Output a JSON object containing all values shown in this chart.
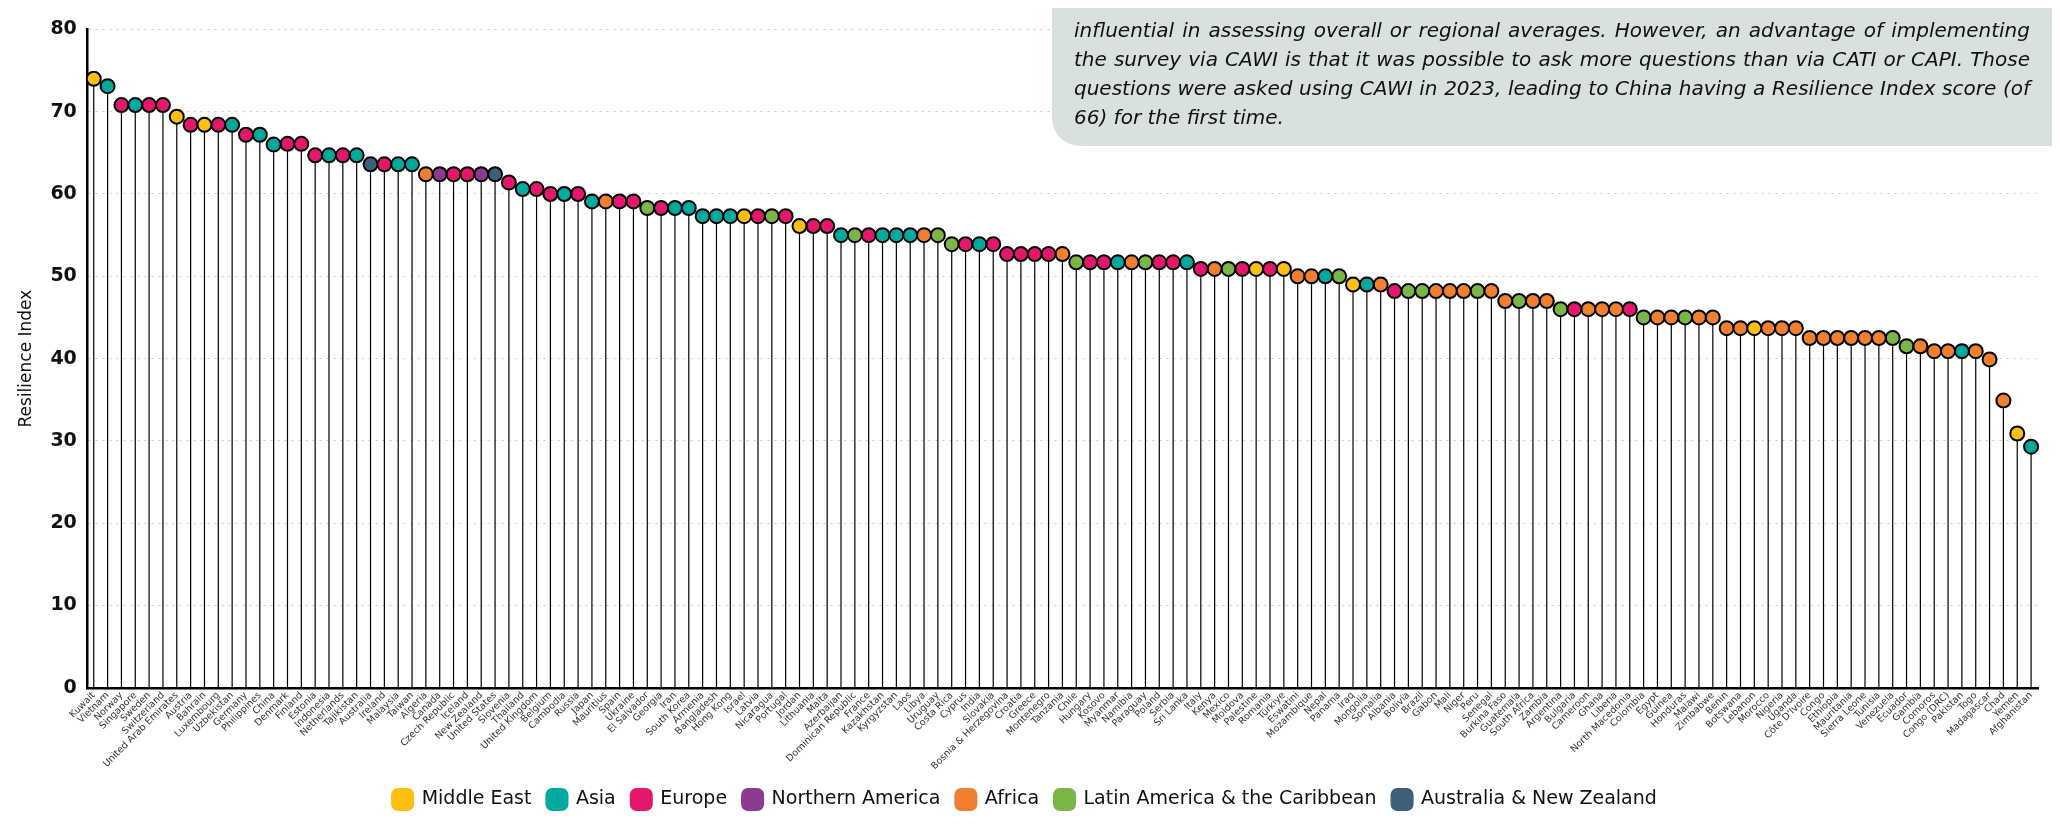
{
  "chart_data": {
    "type": "lollipop",
    "ylabel": "Resilience Index",
    "ylim": [
      0,
      80
    ],
    "yticks": [
      0,
      10,
      20,
      30,
      40,
      50,
      60,
      70,
      80
    ],
    "grid": "y",
    "legend": "bottom",
    "marker": "circle",
    "annotations": [
      "influential in assessing overall or regional averages. However, an advantage of implementing the survey via CAWI is that it was possible to ask more questions than via CATI or CAPI. Those questions were asked using CAWI in 2023, leading to China having a Resilience Index score (of 66) for the first time."
    ],
    "categories": [
      "Kuwait",
      "Vietnam",
      "Norway",
      "Singapore",
      "Sweden",
      "Switzerland",
      "United Arab Emirates",
      "Austria",
      "Bahrain",
      "Luxembourg",
      "Uzbekistan",
      "Germany",
      "Philippines",
      "China",
      "Denmark",
      "Finland",
      "Estonia",
      "Indonesia",
      "Netherlands",
      "Tajikistan",
      "Australia",
      "Ireland",
      "Malaysia",
      "Taiwan",
      "Algeria",
      "Canada",
      "Czech Republic",
      "Iceland",
      "New Zealand",
      "United States",
      "Slovenia",
      "Thailand",
      "United Kingdom",
      "Belgium",
      "Cambodia",
      "Russia",
      "Japan",
      "Mauritius",
      "Spain",
      "Ukraine",
      "El Salvador",
      "Georgia",
      "Iran",
      "South Korea",
      "Armenia",
      "Bangladesh",
      "Hong Kong",
      "Israel",
      "Latvia",
      "Nicaragua",
      "Portugal",
      "Jordan",
      "Lithuania",
      "Malta",
      "Azerbaijan",
      "Dominican Republic",
      "France",
      "Kazakhstan",
      "Kyrgyzstan",
      "Laos",
      "Libya",
      "Uruguay",
      "Costa Rica",
      "Cyprus",
      "India",
      "Slovakia",
      "Bosnia & Herzegovina",
      "Croatia",
      "Greece",
      "Montenegro",
      "Tanzania",
      "Chile",
      "Hungary",
      "Kosovo",
      "Myanmar",
      "Namibia",
      "Paraguay",
      "Poland",
      "Serbia",
      "Sri Lanka",
      "Italy",
      "Kenya",
      "Mexico",
      "Moldova",
      "Palestine",
      "Romania",
      "Türkiye",
      "Eswatini",
      "Mozambique",
      "Nepal",
      "Panama",
      "Iraq",
      "Mongolia",
      "Somalia",
      "Albania",
      "Bolivia",
      "Brazil",
      "Gabon",
      "Mali",
      "Niger",
      "Peru",
      "Senegal",
      "Burkina Faso",
      "Guatemala",
      "South Africa",
      "Zambia",
      "Argentina",
      "Bulgaria",
      "Cameroon",
      "Ghana",
      "Liberia",
      "North Macedonia",
      "Colombia",
      "Egypt",
      "Guinea",
      "Honduras",
      "Malawi",
      "Zimbabwe",
      "Benin",
      "Botswana",
      "Lebanon",
      "Morocco",
      "Nigeria",
      "Uganda",
      "Côte D'Ivoire",
      "Congo",
      "Ethiopia",
      "Mauritania",
      "Sierra Leone",
      "Tunisia",
      "Venezuela",
      "Ecuador",
      "Gambia",
      "Comoros",
      "Congo (DRC)",
      "Pakistan",
      "Togo",
      "Madagascar",
      "Chad",
      "Yemen",
      "Afghanistan"
    ],
    "series": [
      {
        "name": "Middle East",
        "color": "#fdc010",
        "values": [
          74.0,
          null,
          null,
          null,
          null,
          null,
          69.4,
          null,
          68.4,
          null,
          null,
          null,
          null,
          null,
          null,
          null,
          null,
          null,
          null,
          null,
          null,
          null,
          null,
          null,
          null,
          null,
          null,
          null,
          null,
          null,
          null,
          null,
          null,
          null,
          null,
          null,
          null,
          null,
          null,
          null,
          null,
          null,
          null,
          null,
          null,
          null,
          null,
          57.3,
          null,
          null,
          null,
          56.1,
          null,
          null,
          null,
          null,
          null,
          null,
          null,
          null,
          null,
          null,
          null,
          null,
          null,
          null,
          null,
          null,
          null,
          null,
          null,
          null,
          null,
          null,
          null,
          null,
          null,
          null,
          null,
          null,
          null,
          null,
          null,
          null,
          50.9,
          null,
          50.9,
          null,
          null,
          null,
          null,
          49.0,
          null,
          null,
          null,
          null,
          null,
          null,
          null,
          null,
          null,
          null,
          null,
          null,
          null,
          null,
          null,
          null,
          null,
          null,
          null,
          null,
          null,
          null,
          null,
          null,
          null,
          null,
          null,
          null,
          43.7,
          null,
          null,
          null,
          null,
          null,
          null,
          null,
          null,
          null,
          null,
          null,
          null,
          null,
          null,
          null,
          null,
          null,
          null,
          30.9,
          null
        ]
      },
      {
        "name": "Asia",
        "color": "#00a99d",
        "values": [
          null,
          73.1,
          null,
          70.8,
          null,
          null,
          null,
          null,
          null,
          null,
          68.4,
          null,
          67.2,
          66,
          null,
          null,
          null,
          64.7,
          null,
          64.7,
          null,
          null,
          63.6,
          63.6,
          null,
          null,
          null,
          null,
          null,
          null,
          null,
          60.6,
          null,
          null,
          60.0,
          null,
          59.1,
          null,
          null,
          null,
          null,
          null,
          58.3,
          58.3,
          57.3,
          57.3,
          57.3,
          null,
          null,
          null,
          null,
          null,
          null,
          null,
          55.0,
          null,
          null,
          55.0,
          55.0,
          55.0,
          null,
          null,
          null,
          null,
          53.9,
          null,
          null,
          null,
          null,
          null,
          null,
          null,
          null,
          null,
          51.7,
          null,
          null,
          null,
          null,
          51.7,
          null,
          null,
          null,
          null,
          null,
          null,
          null,
          null,
          null,
          50.0,
          null,
          null,
          49.0,
          null,
          null,
          null,
          null,
          null,
          null,
          null,
          null,
          null,
          null,
          null,
          null,
          null,
          null,
          null,
          null,
          null,
          null,
          null,
          null,
          null,
          null,
          null,
          null,
          null,
          null,
          null,
          null,
          null,
          null,
          null,
          null,
          null,
          null,
          null,
          null,
          null,
          null,
          null,
          null,
          null,
          null,
          40.9,
          null,
          null,
          null,
          null,
          29.3
        ]
      },
      {
        "name": "Europe",
        "color": "#e5176c",
        "values": [
          null,
          null,
          70.8,
          null,
          70.8,
          70.8,
          null,
          68.4,
          null,
          68.4,
          null,
          67.2,
          null,
          null,
          66.1,
          66.1,
          64.7,
          null,
          64.7,
          null,
          null,
          63.6,
          null,
          null,
          null,
          null,
          62.4,
          62.4,
          null,
          null,
          61.4,
          null,
          60.6,
          60.0,
          null,
          60.0,
          null,
          null,
          59.1,
          59.1,
          null,
          58.3,
          null,
          null,
          null,
          null,
          null,
          null,
          57.3,
          null,
          57.3,
          null,
          56.1,
          56.1,
          null,
          null,
          55.0,
          null,
          null,
          null,
          null,
          null,
          null,
          53.9,
          null,
          53.9,
          52.7,
          52.7,
          52.7,
          52.7,
          null,
          null,
          51.7,
          51.7,
          null,
          null,
          null,
          51.7,
          51.7,
          null,
          50.9,
          null,
          null,
          50.9,
          null,
          50.9,
          null,
          null,
          null,
          null,
          null,
          null,
          null,
          null,
          48.2,
          null,
          null,
          null,
          null,
          null,
          null,
          null,
          null,
          null,
          null,
          null,
          null,
          46.0,
          null,
          null,
          null,
          46.0,
          null,
          null,
          null,
          null,
          null,
          null,
          null,
          null,
          null,
          null,
          null,
          null,
          null,
          null,
          null,
          null,
          null,
          null,
          null,
          null,
          null,
          null,
          null,
          null,
          null,
          null,
          null,
          null,
          null
        ]
      },
      {
        "name": "Northern America",
        "color": "#8e3a91",
        "values": [
          null,
          null,
          null,
          null,
          null,
          null,
          null,
          null,
          null,
          null,
          null,
          null,
          null,
          null,
          null,
          null,
          null,
          null,
          null,
          null,
          null,
          null,
          null,
          null,
          null,
          62.4,
          null,
          null,
          62.4,
          null,
          null,
          null,
          null,
          null,
          null,
          null,
          null,
          null,
          null,
          null,
          null,
          null,
          null,
          null,
          null,
          null,
          null,
          null,
          null,
          null,
          null,
          null,
          null,
          null,
          null,
          null,
          null,
          null,
          null,
          null,
          null,
          null,
          null,
          null,
          null,
          null,
          null,
          null,
          null,
          null,
          null,
          null,
          null,
          null,
          null,
          null,
          null,
          null,
          null,
          null,
          null,
          null,
          null,
          null,
          null,
          null,
          null,
          null,
          null,
          null,
          null,
          null,
          null,
          null,
          null,
          null,
          null,
          null,
          null,
          null,
          null,
          null,
          null,
          null,
          null,
          null,
          null,
          null,
          null,
          null,
          null,
          null,
          null,
          null,
          null,
          null,
          null,
          null,
          null,
          null,
          null,
          null,
          null,
          null,
          null,
          null,
          null,
          null,
          null,
          null,
          null,
          null,
          null,
          null,
          null,
          null,
          null,
          null,
          null,
          null,
          null
        ]
      },
      {
        "name": "Africa",
        "color": "#f07f2f",
        "values": [
          null,
          null,
          null,
          null,
          null,
          null,
          null,
          null,
          null,
          null,
          null,
          null,
          null,
          null,
          null,
          null,
          null,
          null,
          null,
          null,
          null,
          null,
          null,
          null,
          62.4,
          null,
          null,
          null,
          null,
          null,
          null,
          null,
          null,
          null,
          null,
          null,
          null,
          59.1,
          null,
          null,
          null,
          null,
          null,
          null,
          null,
          null,
          null,
          null,
          null,
          null,
          null,
          null,
          null,
          null,
          null,
          null,
          null,
          null,
          null,
          null,
          55.0,
          null,
          null,
          null,
          null,
          null,
          null,
          null,
          null,
          null,
          52.7,
          null,
          null,
          null,
          null,
          51.7,
          null,
          null,
          null,
          null,
          null,
          50.9,
          null,
          null,
          null,
          null,
          null,
          50.0,
          50.0,
          null,
          null,
          null,
          null,
          49.0,
          null,
          null,
          null,
          48.2,
          48.2,
          48.2,
          null,
          48.2,
          47.0,
          null,
          47.0,
          47.0,
          null,
          null,
          46.0,
          46.0,
          46.0,
          null,
          null,
          45.0,
          45.0,
          null,
          45.0,
          45.0,
          43.7,
          43.7,
          null,
          43.7,
          43.7,
          43.7,
          42.5,
          42.5,
          42.5,
          42.5,
          42.5,
          42.5,
          null,
          null,
          41.5,
          40.9,
          40.9,
          null,
          40.9,
          39.9,
          34.9,
          null,
          null
        ]
      },
      {
        "name": "Latin America & the Caribbean",
        "color": "#7ab547",
        "values": [
          null,
          null,
          null,
          null,
          null,
          null,
          null,
          null,
          null,
          null,
          null,
          null,
          null,
          null,
          null,
          null,
          null,
          null,
          null,
          null,
          null,
          null,
          null,
          null,
          null,
          null,
          null,
          null,
          null,
          null,
          null,
          null,
          null,
          null,
          null,
          null,
          null,
          null,
          null,
          null,
          58.3,
          null,
          null,
          null,
          null,
          null,
          null,
          null,
          null,
          57.3,
          null,
          null,
          null,
          null,
          null,
          55.0,
          null,
          null,
          null,
          null,
          null,
          55.0,
          53.9,
          null,
          null,
          null,
          null,
          null,
          null,
          null,
          null,
          51.7,
          null,
          null,
          null,
          null,
          51.7,
          null,
          null,
          null,
          null,
          null,
          50.9,
          null,
          null,
          null,
          null,
          null,
          null,
          null,
          50.0,
          null,
          null,
          null,
          null,
          48.2,
          48.2,
          null,
          null,
          null,
          48.2,
          null,
          null,
          47.0,
          null,
          null,
          46.0,
          null,
          null,
          null,
          null,
          null,
          45.0,
          null,
          null,
          45.0,
          null,
          null,
          null,
          null,
          null,
          null,
          null,
          null,
          null,
          null,
          null,
          null,
          null,
          null,
          42.5,
          41.5,
          null,
          null,
          null,
          null,
          null,
          null,
          null,
          null,
          null
        ]
      },
      {
        "name": "Australia & New Zealand",
        "color": "#3c5f7b",
        "values": [
          null,
          null,
          null,
          null,
          null,
          null,
          null,
          null,
          null,
          null,
          null,
          null,
          null,
          null,
          null,
          null,
          null,
          null,
          null,
          null,
          63.6,
          null,
          null,
          null,
          null,
          null,
          null,
          null,
          null,
          62.4,
          null,
          null,
          null,
          null,
          null,
          null,
          null,
          null,
          null,
          null,
          null,
          null,
          null,
          null,
          null,
          null,
          null,
          null,
          null,
          null,
          null,
          null,
          null,
          null,
          null,
          null,
          null,
          null,
          null,
          null,
          null,
          null,
          null,
          null,
          null,
          null,
          null,
          null,
          null,
          null,
          null,
          null,
          null,
          null,
          null,
          null,
          null,
          null,
          null,
          null,
          null,
          null,
          null,
          null,
          null,
          null,
          null,
          null,
          null,
          null,
          null,
          null,
          null,
          null,
          null,
          null,
          null,
          null,
          null,
          null,
          null,
          null,
          null,
          null,
          null,
          null,
          null,
          null,
          null,
          null,
          null,
          null,
          null,
          null,
          null,
          null,
          null,
          null,
          null,
          null,
          null,
          null,
          null,
          null,
          null,
          null,
          null,
          null,
          null,
          null,
          null,
          null,
          null,
          null,
          null,
          null,
          null,
          null,
          null,
          null,
          null
        ]
      }
    ]
  }
}
